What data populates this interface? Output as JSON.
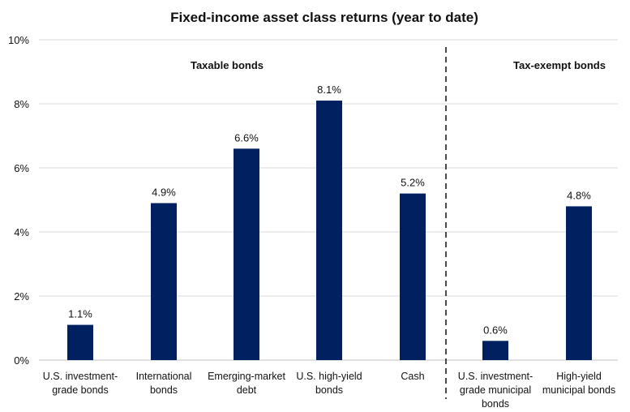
{
  "chart_data": {
    "type": "bar",
    "title": "Fixed-income asset class returns (year to date)",
    "xlabel": "",
    "ylabel": "",
    "ylim": [
      0,
      10
    ],
    "y_ticks": [
      "0%",
      "2%",
      "4%",
      "6%",
      "8%",
      "10%"
    ],
    "y_tick_values": [
      0,
      2,
      4,
      6,
      8,
      10
    ],
    "grid": true,
    "bar_color": "#002060",
    "groups": [
      {
        "label": "Taxable bonds",
        "categories": [
          0,
          1,
          2,
          3,
          4
        ]
      },
      {
        "label": "Tax-exempt bonds",
        "categories": [
          5,
          6
        ]
      }
    ],
    "categories": [
      [
        "U.S. investment-",
        "grade bonds"
      ],
      [
        "International",
        "bonds"
      ],
      [
        "Emerging-market",
        "debt"
      ],
      [
        "U.S. high-yield",
        "bonds"
      ],
      [
        "Cash"
      ],
      [
        "U.S. investment-",
        "grade municipal",
        "bonds"
      ],
      [
        "High-yield",
        "municipal bonds"
      ]
    ],
    "values": [
      1.1,
      4.9,
      6.6,
      8.1,
      5.2,
      0.6,
      4.8
    ],
    "value_labels": [
      "1.1%",
      "4.9%",
      "6.6%",
      "8.1%",
      "5.2%",
      "0.6%",
      "4.8%"
    ]
  }
}
